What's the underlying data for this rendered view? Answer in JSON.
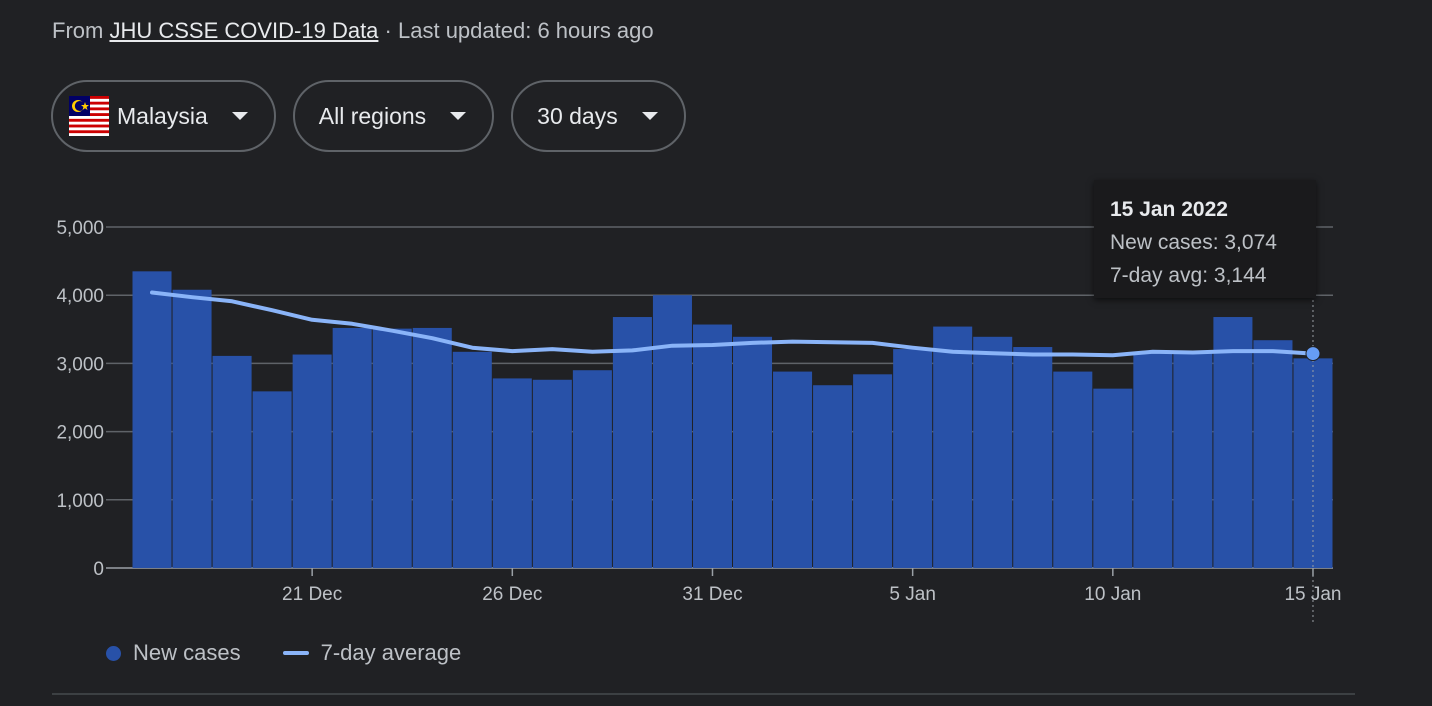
{
  "source": {
    "prefix": "From",
    "link_text": "JHU CSSE COVID-19 Data",
    "separator": "·",
    "updated": "Last updated: 6 hours ago"
  },
  "filters": {
    "country": "Malaysia",
    "country_flag_icon": "malaysia-flag-icon",
    "region": "All regions",
    "range": "30 days"
  },
  "tooltip": {
    "date": "15 Jan 2022",
    "new_cases": "New cases: 3,074",
    "avg": "7-day avg: 3,144"
  },
  "legend": {
    "bars": "New cases",
    "line": "7-day average"
  },
  "colors": {
    "bar": "#2851a8",
    "line": "#8ab4f8",
    "grid": "#5f6368",
    "text": "#bdc1c6"
  },
  "chart_data": {
    "type": "bar",
    "x": [
      "17 Dec",
      "18 Dec",
      "19 Dec",
      "20 Dec",
      "21 Dec",
      "22 Dec",
      "23 Dec",
      "24 Dec",
      "25 Dec",
      "26 Dec",
      "27 Dec",
      "28 Dec",
      "29 Dec",
      "30 Dec",
      "31 Dec",
      "1 Jan",
      "2 Jan",
      "3 Jan",
      "4 Jan",
      "5 Jan",
      "6 Jan",
      "7 Jan",
      "8 Jan",
      "9 Jan",
      "10 Jan",
      "11 Jan",
      "12 Jan",
      "13 Jan",
      "14 Jan",
      "15 Jan"
    ],
    "x_tick_labels": [
      "21 Dec",
      "26 Dec",
      "31 Dec",
      "5 Jan",
      "10 Jan",
      "15 Jan"
    ],
    "y_tick_labels": [
      "0",
      "1,000",
      "2,000",
      "3,000",
      "4,000",
      "5,000"
    ],
    "ylim": [
      0,
      5000
    ],
    "grid": true,
    "legend_position": "bottom",
    "series": [
      {
        "name": "New cases",
        "type": "bar",
        "values": [
          4350,
          4080,
          3110,
          2590,
          3130,
          3520,
          3510,
          3520,
          3170,
          2780,
          2760,
          2900,
          3680,
          4000,
          3570,
          3390,
          2880,
          2680,
          2840,
          3210,
          3540,
          3390,
          3240,
          2880,
          2630,
          3170,
          3170,
          3680,
          3340,
          3074
        ]
      },
      {
        "name": "7-day average",
        "type": "line",
        "values": [
          4040,
          3970,
          3910,
          3780,
          3640,
          3580,
          3480,
          3370,
          3230,
          3180,
          3210,
          3170,
          3190,
          3260,
          3270,
          3300,
          3320,
          3310,
          3300,
          3230,
          3170,
          3150,
          3130,
          3130,
          3120,
          3170,
          3160,
          3180,
          3180,
          3144
        ]
      }
    ]
  }
}
